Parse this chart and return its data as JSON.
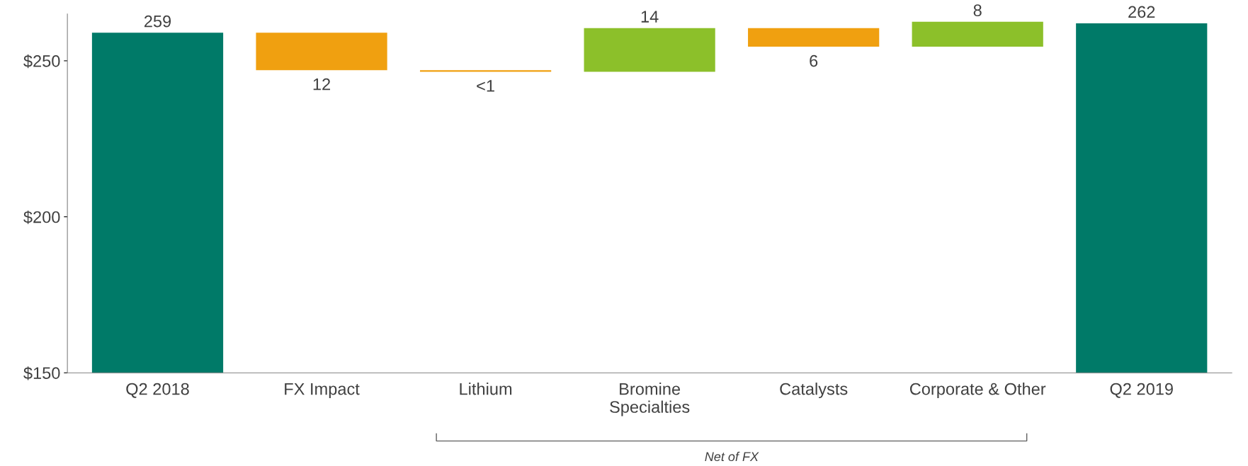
{
  "chart_data": {
    "type": "bar",
    "categories": [
      "Q2 2018",
      "FX Impact",
      "Lithium",
      "Bromine\nSpecialties",
      "Catalysts",
      "Corporate & Other",
      "Q2 2019"
    ],
    "base": [
      0,
      259,
      247,
      246.5,
      260.5,
      254.5,
      0
    ],
    "values": [
      259,
      -12,
      -0.5,
      14,
      -6,
      8,
      262
    ],
    "value_labels": [
      "259",
      "12",
      "<1",
      "14",
      "6",
      "8",
      "262"
    ],
    "colors": [
      "#007a68",
      "#f0a010",
      "#f0a010",
      "#8cc02a",
      "#f0a010",
      "#8cc02a",
      "#007a68"
    ],
    "ylim": [
      150,
      265
    ],
    "yticks": [
      {
        "value": 150,
        "label": "$150"
      },
      {
        "value": 200,
        "label": "$200"
      },
      {
        "value": 250,
        "label": "$250"
      }
    ],
    "grid": false,
    "legend": false,
    "annotations": [
      "Net of FX"
    ]
  }
}
